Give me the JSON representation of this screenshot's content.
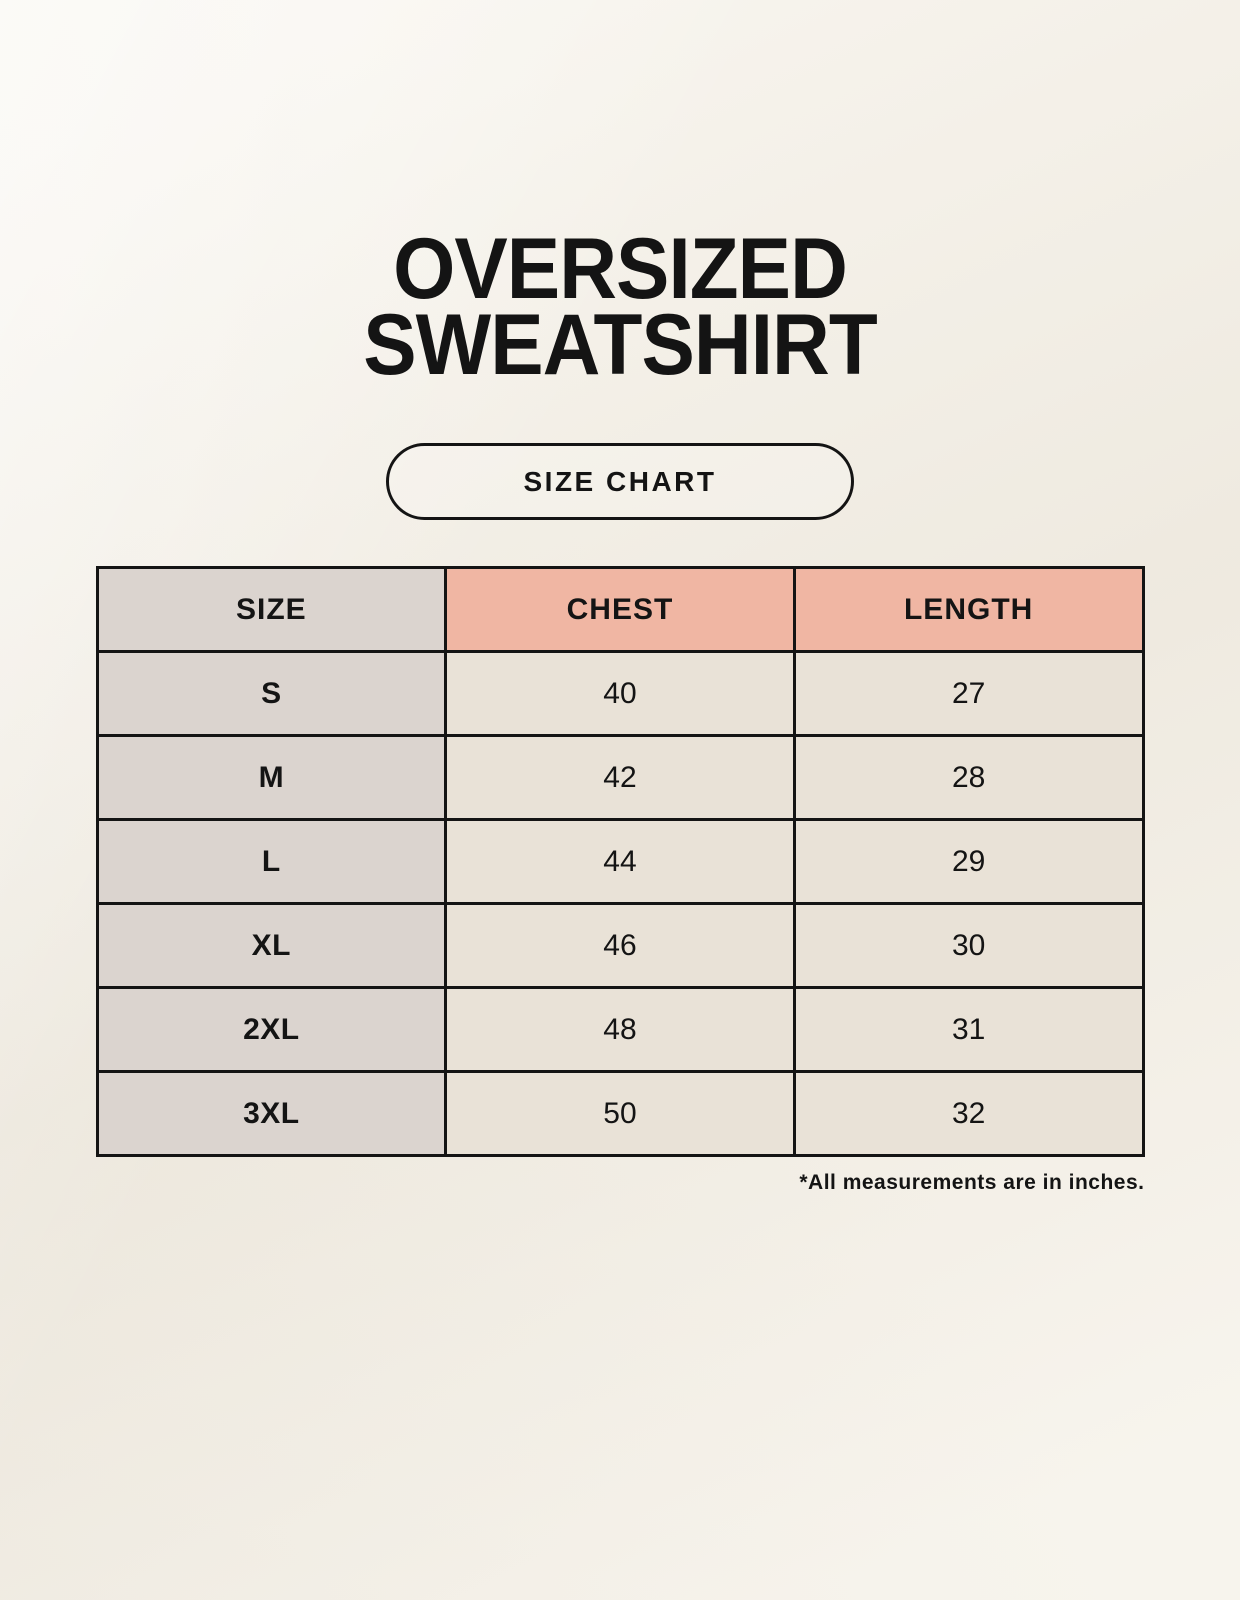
{
  "header": {
    "title_lines": [
      "OVERSIZED",
      "SWEATSHIRT"
    ],
    "badge_label": "SIZE CHART"
  },
  "chart_data": {
    "type": "table",
    "title": "OVERSIZED SWEATSHIRT",
    "subtitle": "SIZE CHART",
    "columns": [
      "SIZE",
      "CHEST",
      "LENGTH"
    ],
    "rows": [
      {
        "size": "S",
        "chest": "40",
        "length": "27"
      },
      {
        "size": "M",
        "chest": "42",
        "length": "28"
      },
      {
        "size": "L",
        "chest": "44",
        "length": "29"
      },
      {
        "size": "XL",
        "chest": "46",
        "length": "30"
      },
      {
        "size": "2XL",
        "chest": "48",
        "length": "31"
      },
      {
        "size": "3XL",
        "chest": "50",
        "length": "32"
      }
    ],
    "units": "inches",
    "annotation": "*All measurements are in inches."
  },
  "colors": {
    "background": "#f5f1e8",
    "header_accent": "#f0b6a3",
    "size_column": "#dbd4cf",
    "data_cell": "#e9e2d7",
    "border_and_text": "#141414"
  }
}
